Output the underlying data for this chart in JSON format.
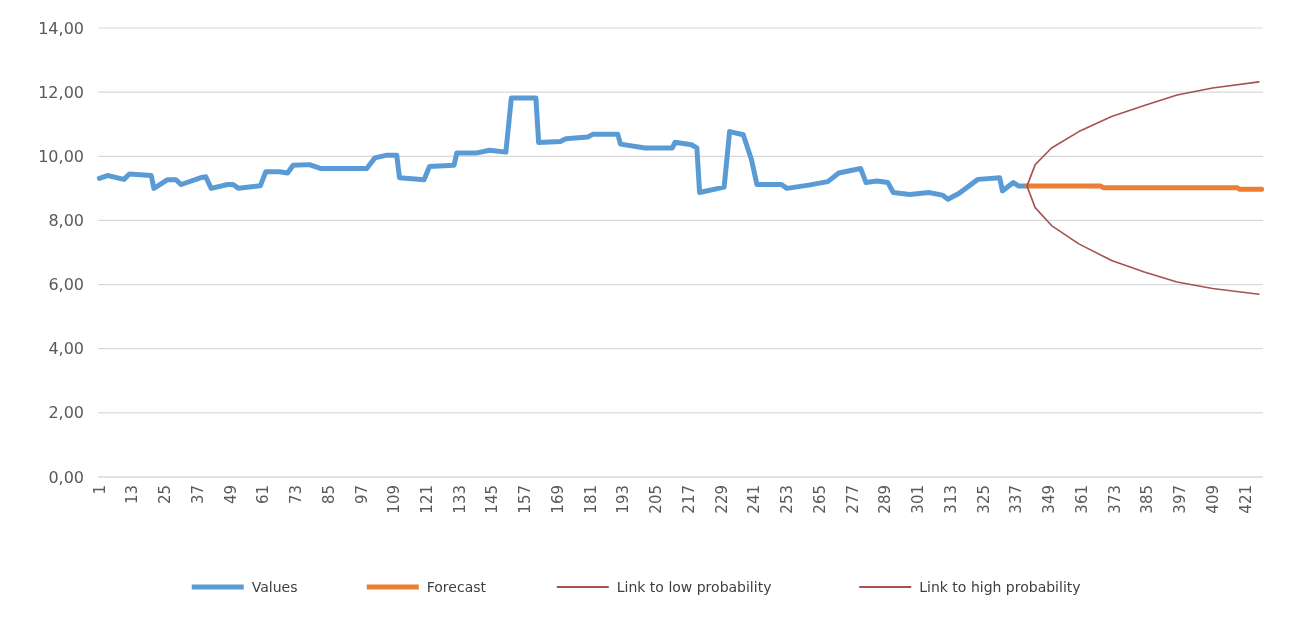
{
  "chart_data": {
    "type": "line",
    "xlim": [
      0.5,
      427.5
    ],
    "ylim": [
      0,
      14
    ],
    "xticks": [
      1,
      13,
      25,
      37,
      49,
      61,
      73,
      85,
      97,
      109,
      121,
      133,
      145,
      157,
      169,
      181,
      193,
      205,
      217,
      229,
      241,
      253,
      265,
      277,
      289,
      301,
      313,
      325,
      337,
      349,
      361,
      373,
      385,
      397,
      409,
      421
    ],
    "yticks": [
      {
        "value": 0,
        "label": "0,00"
      },
      {
        "value": 2,
        "label": "2,00"
      },
      {
        "value": 4,
        "label": "4,00"
      },
      {
        "value": 6,
        "label": "6,00"
      },
      {
        "value": 8,
        "label": "8,00"
      },
      {
        "value": 10,
        "label": "10,00"
      },
      {
        "value": 12,
        "label": "12,00"
      },
      {
        "value": 14,
        "label": "14,00"
      }
    ],
    "grid": "y",
    "legend": "bottom",
    "marker": "none",
    "line_style": "solid",
    "series": [
      {
        "name": "Values",
        "color": "#5b9bd5",
        "x": [
          1,
          4,
          10,
          12,
          20,
          21,
          26,
          29,
          31,
          38,
          40,
          42,
          48,
          50,
          52,
          60,
          62,
          67,
          70,
          72,
          78,
          82,
          99,
          102,
          106,
          110,
          111,
          120,
          122,
          131,
          132,
          139,
          144,
          150,
          152,
          161,
          162,
          170,
          172,
          180,
          182,
          191,
          192,
          201,
          211,
          212,
          218,
          220,
          221,
          230,
          232,
          237,
          240,
          242,
          251,
          253,
          261,
          268,
          272,
          280,
          282,
          286,
          290,
          292,
          298,
          305,
          310,
          312,
          316,
          323,
          331,
          332,
          336,
          338,
          341
        ],
        "values": [
          9.31,
          9.4,
          9.28,
          9.45,
          9.4,
          9.0,
          9.27,
          9.27,
          9.12,
          9.33,
          9.36,
          9.0,
          9.12,
          9.12,
          9.0,
          9.08,
          9.52,
          9.52,
          9.48,
          9.72,
          9.74,
          9.62,
          9.62,
          9.95,
          10.03,
          10.03,
          9.33,
          9.27,
          9.68,
          9.72,
          10.1,
          10.1,
          10.19,
          10.13,
          11.82,
          11.82,
          10.43,
          10.46,
          10.55,
          10.6,
          10.69,
          10.69,
          10.38,
          10.26,
          10.26,
          10.44,
          10.36,
          10.26,
          8.87,
          9.04,
          10.77,
          10.67,
          9.9,
          9.12,
          9.12,
          9.0,
          9.1,
          9.21,
          9.48,
          9.62,
          9.18,
          9.23,
          9.18,
          8.87,
          8.81,
          8.87,
          8.79,
          8.66,
          8.84,
          9.28,
          9.33,
          8.92,
          9.18,
          9.07,
          9.07
        ]
      },
      {
        "name": "Forecast",
        "color": "#ed7d31",
        "x": [
          341,
          368,
          369,
          418,
          419,
          427
        ],
        "values": [
          9.07,
          9.07,
          9.02,
          9.02,
          8.97,
          8.97
        ]
      },
      {
        "name": "Link to low probability",
        "color": "#a5514f",
        "x": [
          341,
          344,
          350,
          360,
          372,
          384,
          396,
          409,
          426
        ],
        "values": [
          9.07,
          8.4,
          7.84,
          7.27,
          6.75,
          6.39,
          6.08,
          5.88,
          5.7
        ]
      },
      {
        "name": "Link to high probability",
        "color": "#a5514f",
        "x": [
          341,
          344,
          350,
          360,
          372,
          384,
          396,
          409,
          426
        ],
        "values": [
          9.07,
          9.74,
          10.26,
          10.77,
          11.24,
          11.58,
          11.91,
          12.13,
          12.32
        ]
      }
    ]
  }
}
